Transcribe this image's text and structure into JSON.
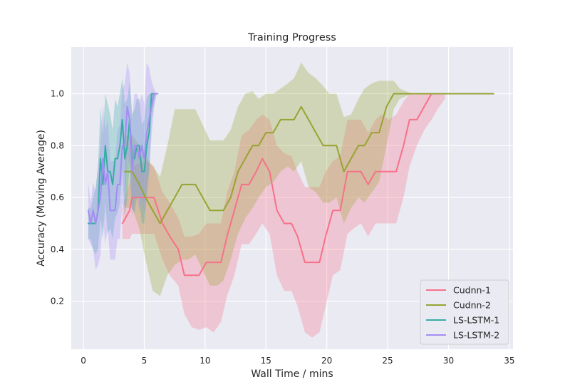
{
  "chart_data": {
    "type": "line",
    "title": "Training Progress",
    "xlabel": "Wall Time / mins",
    "ylabel": "Accuracy (Moving Average)",
    "xlim": [
      -1,
      35.3
    ],
    "ylim": [
      0.015,
      1.18
    ],
    "xticks": [
      0,
      5,
      10,
      15,
      20,
      25,
      30,
      35
    ],
    "xtick_labels": [
      "0",
      "5",
      "10",
      "15",
      "20",
      "25",
      "30",
      "35"
    ],
    "yticks": [
      0.2,
      0.4,
      0.6,
      0.8,
      1.0
    ],
    "ytick_labels": [
      "0.2",
      "0.4",
      "0.6",
      "0.8",
      "1.0"
    ],
    "grid": true,
    "legend_position": "bottom-right",
    "background": "#eaeaf2",
    "series": [
      {
        "name": "Cudnn-1",
        "color": "#f77189",
        "x": [
          3.2,
          3.8,
          4.0,
          5.2,
          5.8,
          6.5,
          7.1,
          7.8,
          8.3,
          8.9,
          9.5,
          10.1,
          10.7,
          11.3,
          11.8,
          12.4,
          13.0,
          13.6,
          14.2,
          14.7,
          15.3,
          15.9,
          16.5,
          17.1,
          17.6,
          18.2,
          18.8,
          19.4,
          19.9,
          20.5,
          21.1,
          21.7,
          22.2,
          22.8,
          23.4,
          24.0,
          24.5,
          25.1,
          25.7,
          26.3,
          26.8,
          27.4,
          28.0,
          28.6,
          29.1,
          29.7
        ],
        "y": [
          0.5,
          0.55,
          0.6,
          0.6,
          0.6,
          0.5,
          0.45,
          0.4,
          0.3,
          0.3,
          0.3,
          0.35,
          0.35,
          0.35,
          0.45,
          0.55,
          0.65,
          0.65,
          0.7,
          0.75,
          0.7,
          0.55,
          0.5,
          0.5,
          0.45,
          0.35,
          0.35,
          0.35,
          0.45,
          0.55,
          0.55,
          0.7,
          0.7,
          0.7,
          0.65,
          0.7,
          0.7,
          0.7,
          0.7,
          0.8,
          0.9,
          0.9,
          0.95,
          1.0,
          1.0,
          1.0
        ],
        "upper": [
          0.56,
          0.66,
          0.72,
          0.74,
          0.72,
          0.62,
          0.58,
          0.52,
          0.45,
          0.45,
          0.46,
          0.5,
          0.5,
          0.5,
          0.62,
          0.7,
          0.84,
          0.86,
          0.9,
          0.92,
          0.9,
          0.8,
          0.77,
          0.76,
          0.7,
          0.64,
          0.64,
          0.64,
          0.7,
          0.74,
          0.76,
          0.9,
          0.9,
          0.9,
          0.85,
          0.9,
          0.92,
          0.9,
          0.92,
          0.97,
          1.0,
          1.0,
          1.0,
          1.0,
          1.0,
          1.0
        ],
        "lower": [
          0.44,
          0.44,
          0.46,
          0.46,
          0.46,
          0.36,
          0.3,
          0.26,
          0.15,
          0.1,
          0.09,
          0.1,
          0.08,
          0.12,
          0.22,
          0.3,
          0.42,
          0.42,
          0.46,
          0.5,
          0.46,
          0.3,
          0.24,
          0.24,
          0.18,
          0.08,
          0.06,
          0.08,
          0.18,
          0.3,
          0.32,
          0.46,
          0.48,
          0.5,
          0.45,
          0.5,
          0.5,
          0.5,
          0.5,
          0.6,
          0.72,
          0.8,
          0.86,
          0.9,
          0.94,
          0.98
        ]
      },
      {
        "name": "Cudnn-2",
        "color": "#97a431",
        "x": [
          3.4,
          4.0,
          4.6,
          5.1,
          5.7,
          6.3,
          6.9,
          7.5,
          8.1,
          8.6,
          9.2,
          9.8,
          10.4,
          11.0,
          11.5,
          12.1,
          12.7,
          13.3,
          13.9,
          14.4,
          15.0,
          15.6,
          16.2,
          16.8,
          17.3,
          17.9,
          18.5,
          19.1,
          19.7,
          20.2,
          20.8,
          21.4,
          22.0,
          22.6,
          23.1,
          23.7,
          24.3,
          24.9,
          25.5,
          26.0,
          27.0,
          28.0,
          29.0,
          30.0,
          31.0,
          32.0,
          33.0,
          33.7
        ],
        "y": [
          0.7,
          0.7,
          0.65,
          0.6,
          0.55,
          0.5,
          0.55,
          0.6,
          0.65,
          0.65,
          0.65,
          0.6,
          0.55,
          0.55,
          0.55,
          0.6,
          0.7,
          0.75,
          0.8,
          0.8,
          0.85,
          0.85,
          0.9,
          0.9,
          0.9,
          0.95,
          0.9,
          0.85,
          0.8,
          0.8,
          0.8,
          0.7,
          0.75,
          0.8,
          0.8,
          0.85,
          0.85,
          0.95,
          1.0,
          1.0,
          1.0,
          1.0,
          1.0,
          1.0,
          1.0,
          1.0,
          1.0,
          1.0
        ],
        "upper": [
          0.84,
          0.84,
          0.8,
          0.76,
          0.72,
          0.68,
          0.8,
          0.94,
          0.94,
          0.94,
          0.94,
          0.88,
          0.82,
          0.82,
          0.82,
          0.86,
          0.95,
          1.0,
          1.01,
          0.98,
          1.0,
          1.0,
          1.02,
          1.04,
          1.06,
          1.12,
          1.08,
          1.06,
          1.03,
          1.0,
          1.0,
          0.91,
          0.92,
          0.98,
          1.02,
          1.04,
          1.05,
          1.05,
          1.05,
          1.02,
          1.0,
          1.0,
          1.0,
          1.0,
          1.0,
          1.0,
          1.0,
          1.0
        ],
        "lower": [
          0.56,
          0.56,
          0.48,
          0.36,
          0.24,
          0.22,
          0.3,
          0.34,
          0.36,
          0.36,
          0.38,
          0.32,
          0.26,
          0.26,
          0.28,
          0.36,
          0.46,
          0.52,
          0.56,
          0.6,
          0.64,
          0.66,
          0.7,
          0.72,
          0.7,
          0.74,
          0.64,
          0.62,
          0.58,
          0.58,
          0.6,
          0.5,
          0.56,
          0.6,
          0.58,
          0.62,
          0.66,
          0.8,
          0.94,
          0.98,
          1.0,
          1.0,
          1.0,
          1.0,
          1.0,
          1.0,
          1.0,
          1.0
        ]
      },
      {
        "name": "LS-LSTM-1",
        "color": "#36ada4",
        "x": [
          0.4,
          0.6,
          0.8,
          1.0,
          1.2,
          1.4,
          1.6,
          1.8,
          2.0,
          2.2,
          2.4,
          2.6,
          2.8,
          3.0,
          3.2,
          3.4,
          3.6,
          3.8,
          4.0,
          4.2,
          4.4,
          4.6,
          4.8,
          5.0,
          5.2,
          5.4,
          5.6,
          5.8,
          6.0
        ],
        "y": [
          0.5,
          0.5,
          0.5,
          0.5,
          0.55,
          0.75,
          0.65,
          0.8,
          0.7,
          0.7,
          0.65,
          0.75,
          0.75,
          0.8,
          0.9,
          0.75,
          0.8,
          0.9,
          0.75,
          0.75,
          0.8,
          0.8,
          0.7,
          0.7,
          0.8,
          0.85,
          1.0,
          1.0,
          1.0
        ],
        "upper": [
          0.56,
          0.56,
          0.6,
          0.64,
          0.72,
          0.95,
          0.84,
          1.0,
          0.96,
          0.92,
          0.86,
          0.98,
          0.95,
          1.0,
          1.06,
          0.96,
          0.98,
          1.05,
          0.92,
          0.94,
          0.98,
          0.98,
          0.88,
          0.9,
          0.98,
          1.0,
          1.0,
          1.0,
          1.0
        ],
        "lower": [
          0.44,
          0.44,
          0.4,
          0.38,
          0.4,
          0.52,
          0.44,
          0.58,
          0.46,
          0.48,
          0.44,
          0.52,
          0.54,
          0.58,
          0.7,
          0.52,
          0.6,
          0.72,
          0.56,
          0.54,
          0.6,
          0.6,
          0.5,
          0.5,
          0.6,
          0.7,
          0.9,
          0.96,
          1.0
        ]
      },
      {
        "name": "LS-LSTM-2",
        "color": "#a48cf4",
        "x": [
          0.4,
          0.6,
          0.8,
          1.0,
          1.2,
          1.4,
          1.6,
          1.8,
          2.0,
          2.2,
          2.4,
          2.6,
          2.8,
          3.0,
          3.2,
          3.4,
          3.6,
          3.8,
          4.0,
          4.2,
          4.4,
          4.6,
          4.8,
          5.0,
          5.2,
          5.4,
          5.6,
          5.8,
          6.0,
          6.1
        ],
        "y": [
          0.55,
          0.5,
          0.55,
          0.5,
          0.55,
          0.6,
          0.75,
          0.65,
          0.7,
          0.55,
          0.55,
          0.55,
          0.65,
          0.65,
          0.8,
          0.8,
          0.95,
          0.9,
          0.7,
          0.8,
          0.8,
          0.75,
          0.8,
          0.75,
          0.85,
          0.9,
          0.95,
          1.0,
          1.0,
          1.0
        ],
        "upper": [
          0.66,
          0.58,
          0.66,
          0.62,
          0.72,
          0.8,
          0.96,
          0.86,
          0.9,
          0.74,
          0.74,
          0.74,
          0.86,
          0.88,
          1.02,
          1.04,
          1.12,
          1.08,
          0.9,
          1.0,
          1.0,
          0.96,
          1.0,
          0.96,
          1.12,
          1.1,
          1.05,
          1.02,
          1.0,
          1.0
        ],
        "lower": [
          0.44,
          0.42,
          0.4,
          0.32,
          0.34,
          0.38,
          0.52,
          0.42,
          0.48,
          0.36,
          0.36,
          0.36,
          0.44,
          0.44,
          0.58,
          0.56,
          0.76,
          0.72,
          0.52,
          0.6,
          0.6,
          0.54,
          0.6,
          0.54,
          0.64,
          0.7,
          0.84,
          0.94,
          1.0,
          1.0
        ]
      }
    ]
  }
}
